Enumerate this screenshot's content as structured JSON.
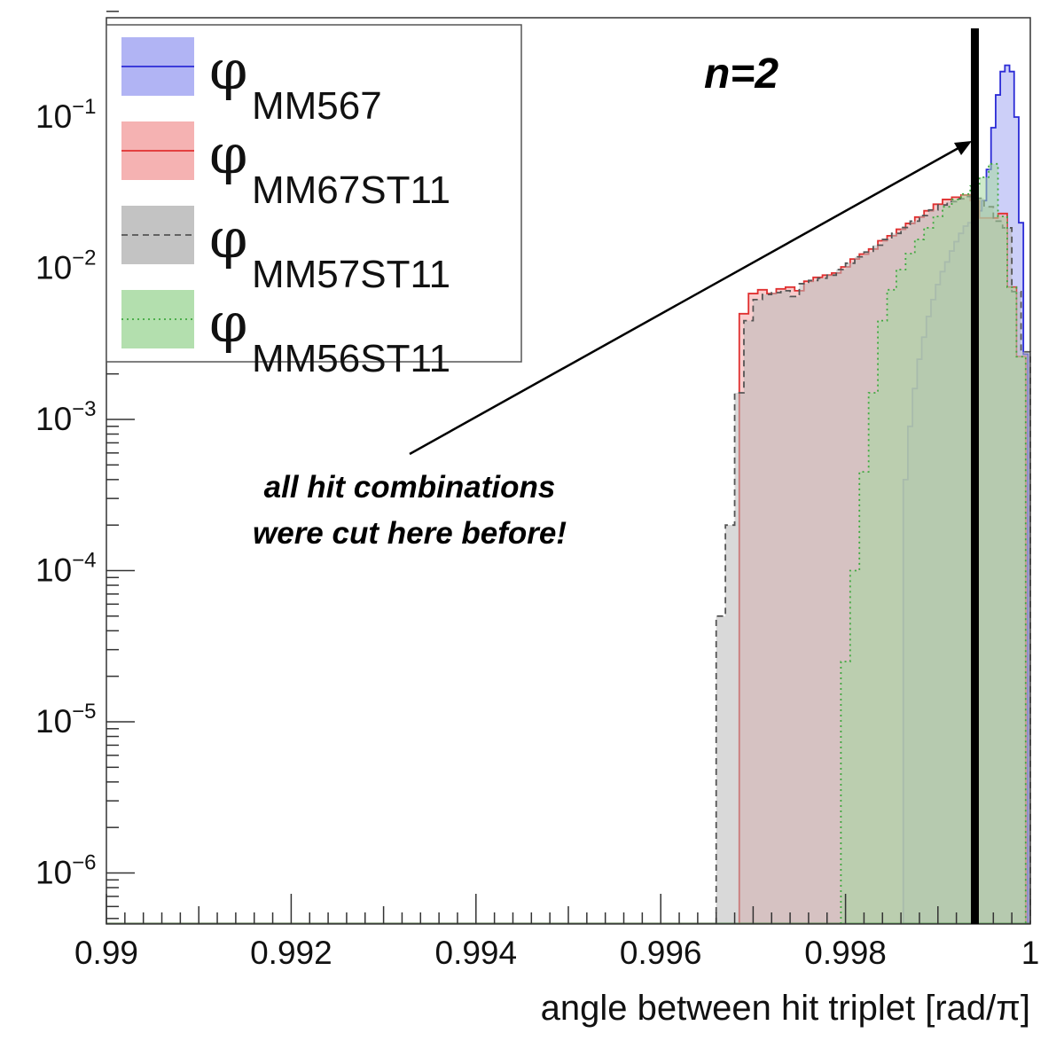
{
  "chart_data": {
    "type": "histogram",
    "title": "",
    "xlabel": "angle between hit triplet [rad/π]",
    "ylabel": "",
    "xlim": [
      0.99,
      1.0
    ],
    "ylim": [
      4.5e-07,
      0.5
    ],
    "yscale": "log",
    "grid": false,
    "legend_position": "top-left",
    "x_ticks": [
      "0.99",
      "0.992",
      "0.994",
      "0.996",
      "0.998",
      "1"
    ],
    "y_tick_exponents": [
      "-1",
      "-2",
      "-3",
      "-4",
      "-5",
      "-6"
    ],
    "y_tick_base": "10",
    "series": [
      {
        "symbol": "φ",
        "subscript": "MM567",
        "fill_color": "#a3a7f2",
        "line_color": "#2b2bd6",
        "line_style": "solid",
        "x": [
          0.99865,
          0.9987,
          0.99875,
          0.9988,
          0.99885,
          0.9989,
          0.99895,
          0.999,
          0.99905,
          0.9991,
          0.99915,
          0.9992,
          0.99925,
          0.9993,
          0.99935,
          0.9994,
          0.99945,
          0.9995,
          0.99955,
          0.9996,
          0.99965,
          0.9997,
          0.99975,
          0.9998,
          0.99985,
          0.9999,
          0.99995
        ],
        "y": [
          0.0004,
          0.0009,
          0.0016,
          0.0025,
          0.0035,
          0.0048,
          0.0062,
          0.0078,
          0.0095,
          0.011,
          0.013,
          0.015,
          0.017,
          0.019,
          0.02,
          0.022,
          0.024,
          0.028,
          0.045,
          0.085,
          0.14,
          0.2,
          0.22,
          0.2,
          0.1,
          0.02,
          0.0027
        ]
      },
      {
        "symbol": "φ",
        "subscript": "MM67ST11",
        "fill_color": "#f3a4a4",
        "line_color": "#e03030",
        "line_style": "solid",
        "x": [
          0.9969,
          0.997,
          0.9971,
          0.9972,
          0.9973,
          0.9974,
          0.9975,
          0.9976,
          0.9977,
          0.9978,
          0.9979,
          0.998,
          0.9981,
          0.9982,
          0.9983,
          0.9984,
          0.9985,
          0.9986,
          0.9987,
          0.9988,
          0.9989,
          0.999,
          0.9991,
          0.9992,
          0.9993,
          0.9994,
          0.9995,
          0.9996,
          0.9997,
          0.9998,
          0.9999
        ],
        "y": [
          0.005,
          0.0068,
          0.0072,
          0.0068,
          0.0073,
          0.0075,
          0.0071,
          0.0082,
          0.0087,
          0.009,
          0.0093,
          0.0102,
          0.0115,
          0.0124,
          0.0134,
          0.0152,
          0.0164,
          0.0181,
          0.0198,
          0.0218,
          0.024,
          0.0265,
          0.0285,
          0.0295,
          0.0305,
          0.028,
          0.0215,
          0.0215,
          0.023,
          0.0075,
          0.0026
        ]
      },
      {
        "symbol": "φ",
        "subscript": "MM57ST11",
        "fill_color": "#b9b9b9",
        "line_color": "#555555",
        "line_style": "dashed",
        "x": [
          0.99665,
          0.99675,
          0.99685,
          0.99695,
          0.99705,
          0.99715,
          0.99725,
          0.99735,
          0.99745,
          0.99755,
          0.99765,
          0.99775,
          0.99785,
          0.99795,
          0.99805,
          0.99815,
          0.99825,
          0.99835,
          0.99845,
          0.99855,
          0.99865,
          0.99875,
          0.99885,
          0.99895,
          0.99905,
          0.99915,
          0.99925,
          0.99935,
          0.99945,
          0.99955,
          0.99965,
          0.99975,
          0.99985,
          0.99995
        ],
        "y": [
          5e-05,
          0.0002,
          0.0015,
          0.0045,
          0.0062,
          0.0067,
          0.0069,
          0.0071,
          0.0065,
          0.0079,
          0.0083,
          0.0086,
          0.009,
          0.0098,
          0.0108,
          0.0119,
          0.0128,
          0.0142,
          0.0155,
          0.017,
          0.0186,
          0.0205,
          0.0223,
          0.0243,
          0.0262,
          0.0276,
          0.0288,
          0.0298,
          0.029,
          0.0255,
          0.0205,
          0.0185,
          0.007,
          0.0028
        ]
      },
      {
        "symbol": "φ",
        "subscript": "MM56ST11",
        "fill_color": "#a6d9a0",
        "line_color": "#3fa83f",
        "line_style": "dotted",
        "x": [
          0.998,
          0.9981,
          0.9982,
          0.9983,
          0.9984,
          0.9985,
          0.9986,
          0.9987,
          0.9988,
          0.9989,
          0.999,
          0.9991,
          0.9992,
          0.9993,
          0.9994,
          0.9995,
          0.9996,
          0.9997,
          0.9998,
          0.9999
        ],
        "y": [
          2.5e-05,
          0.0001,
          0.00045,
          0.0015,
          0.0045,
          0.0072,
          0.0098,
          0.0125,
          0.0155,
          0.0185,
          0.022,
          0.0255,
          0.0285,
          0.031,
          0.035,
          0.04,
          0.049,
          0.022,
          0.0075,
          0.0026
        ]
      }
    ],
    "annotations": {
      "n_label": "n=2",
      "cut_line_x": 0.9994,
      "note_line1": "all hit combinations",
      "note_line2": "were cut here before!"
    }
  }
}
